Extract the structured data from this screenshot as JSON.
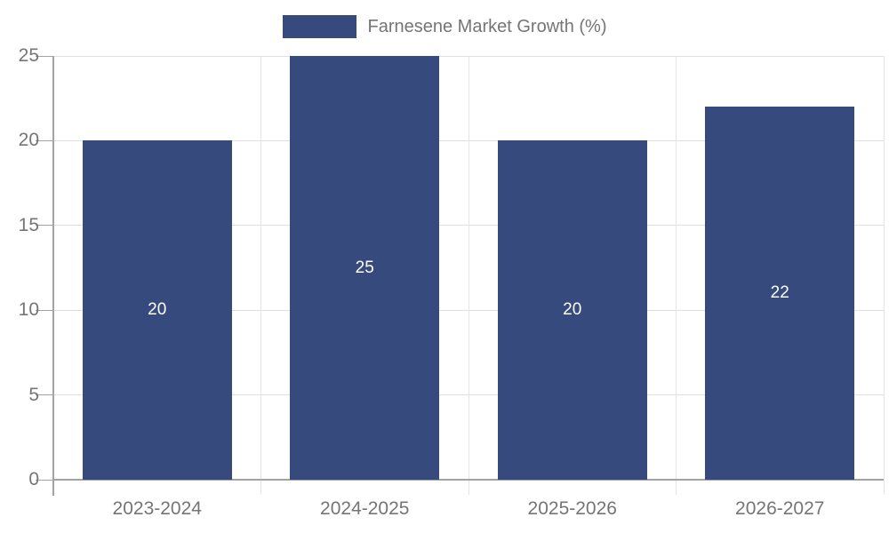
{
  "chart_data": {
    "type": "bar",
    "title": "",
    "legend": "Farnesene Market Growth (%)",
    "legend_position": "top-center",
    "categories": [
      "2023-2024",
      "2024-2025",
      "2025-2026",
      "2026-2027"
    ],
    "values": [
      20,
      25,
      20,
      22
    ],
    "bar_labels": [
      "20",
      "25",
      "20",
      "22"
    ],
    "xlabel": "",
    "ylabel": "",
    "ylim": [
      0,
      25
    ],
    "yticks": [
      0,
      5,
      10,
      15,
      20,
      25
    ],
    "grid": true,
    "colors": {
      "bar": "#364a7e",
      "grid": "#e0e0e0",
      "boundary_grid": "#e4e4e4",
      "axis": "#a3a3a3",
      "tick_label": "#757575",
      "bar_label": "#ffffff",
      "background": "#ffffff"
    }
  }
}
